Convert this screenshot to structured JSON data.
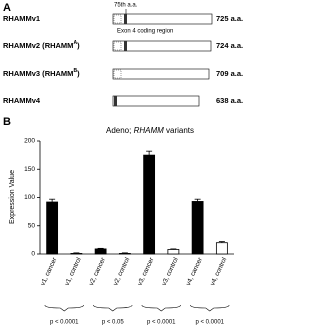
{
  "panel_a": {
    "label": "A",
    "marker": "75th a.a.",
    "region_label": "Exon 4 coding region",
    "variants": [
      {
        "name": "RHAMMv1",
        "length": "725 a.a."
      },
      {
        "name": "RHAMMv2",
        "alias": "RHAMM",
        "alias_sup": "A",
        "length": "724 a.a."
      },
      {
        "name": "RHAMMv3",
        "alias": "RHAMM",
        "alias_sup": "B",
        "length": "709 a.a."
      },
      {
        "name": "RHAMMv4",
        "length": "638 a.a."
      }
    ]
  },
  "chart_data": {
    "type": "bar",
    "panel_label": "B",
    "title_parts": [
      "Adeno; ",
      "RHAMM",
      " variants"
    ],
    "y_label": "Expression Value",
    "categories": [
      "v1, cancer",
      "v1, control",
      "v2, cancer",
      "v2, control",
      "v3, cancer",
      "v3, control",
      "v4, cancer",
      "v4, control"
    ],
    "values": [
      92,
      1,
      9,
      1,
      175,
      8,
      93,
      20
    ],
    "errors": [
      5,
      1,
      1,
      1,
      7,
      1,
      4,
      2
    ],
    "colors": [
      "#000000",
      "#ffffff",
      "#000000",
      "#ffffff",
      "#000000",
      "#ffffff",
      "#000000",
      "#ffffff"
    ],
    "ylim": [
      0,
      200
    ],
    "yticks": [
      0,
      50,
      100,
      150,
      200
    ],
    "comparisons": [
      "p < 0.0001",
      "p < 0.05",
      "p < 0.0001",
      "p < 0.0001"
    ]
  }
}
